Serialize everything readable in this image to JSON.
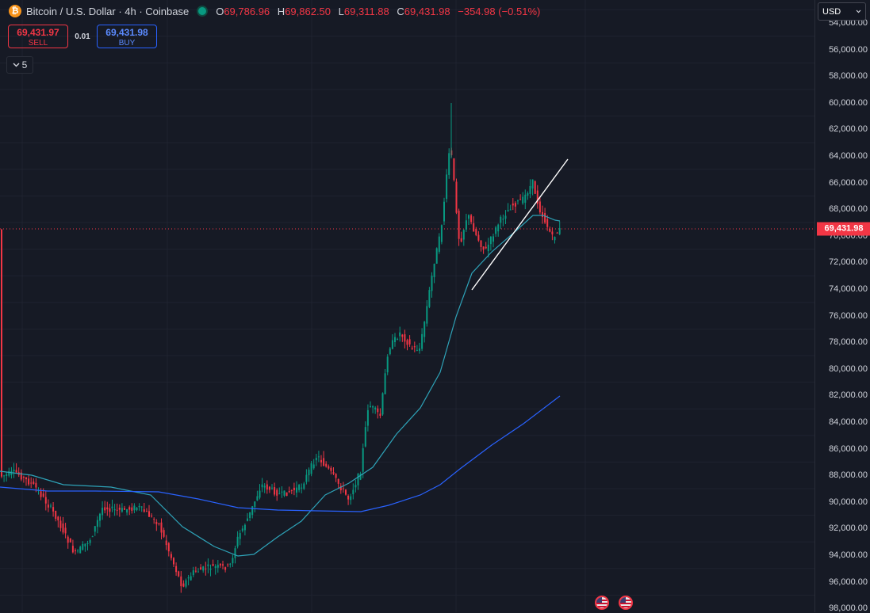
{
  "header": {
    "logo_glyph": "₿",
    "title": "Bitcoin / U.S. Dollar · 4h · Coinbase",
    "ohlc": [
      {
        "k": "O",
        "v": "69,786.96"
      },
      {
        "k": "H",
        "v": "69,862.50"
      },
      {
        "k": "L",
        "v": "69,311.88"
      },
      {
        "k": "C",
        "v": "69,431.98"
      }
    ],
    "change": "−354.98 (−0.51%)"
  },
  "trade": {
    "sell_price": "69,431.97",
    "sell_label": "SELL",
    "spread": "0.01",
    "buy_price": "69,431.98",
    "buy_label": "BUY"
  },
  "indicators_toggle": {
    "count": "5",
    "icon": "chevron-down-icon"
  },
  "currency": {
    "value": "USD",
    "icon": "chevron-down-icon"
  },
  "axis": {
    "labels": [
      "54,000.00",
      "56,000.00",
      "58,000.00",
      "60,000.00",
      "62,000.00",
      "64,000.00",
      "66,000.00",
      "68,000.00",
      "70,000.00",
      "72,000.00",
      "74,000.00",
      "76,000.00",
      "78,000.00",
      "80,000.00",
      "82,000.00",
      "84,000.00",
      "86,000.00",
      "88,000.00",
      "90,000.00",
      "92,000.00",
      "94,000.00",
      "96,000.00",
      "98,000.00"
    ],
    "last_price": "69,431.98",
    "inverted": true
  },
  "colors": {
    "up": "#089981",
    "down": "#f23645",
    "ma_fast": "#2ea3b8",
    "ma_slow": "#2962ff",
    "trendline": "#ffffff"
  },
  "events": [
    "us-flag-icon",
    "us-flag-icon"
  ]
}
